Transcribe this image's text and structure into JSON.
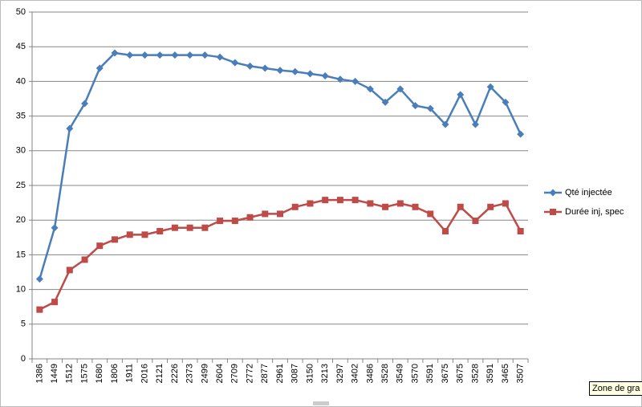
{
  "chart_data": {
    "type": "line",
    "categories": [
      "1386",
      "1449",
      "1512",
      "1575",
      "1680",
      "1806",
      "1911",
      "2016",
      "2121",
      "2226",
      "2373",
      "2499",
      "2604",
      "2709",
      "2772",
      "2877",
      "2961",
      "3087",
      "3150",
      "3213",
      "3297",
      "3402",
      "3486",
      "3528",
      "3549",
      "3570",
      "3591",
      "3675",
      "3675",
      "3528",
      "3591",
      "3465",
      "3507"
    ],
    "series": [
      {
        "name": "Qté injectée",
        "color": "#4a7ebb",
        "marker": "diamond",
        "values": [
          11.5,
          18.9,
          33.2,
          36.8,
          41.9,
          44.1,
          43.8,
          43.8,
          43.8,
          43.8,
          43.8,
          43.8,
          43.5,
          42.7,
          42.2,
          41.9,
          41.6,
          41.4,
          41.1,
          40.8,
          40.3,
          40.0,
          38.9,
          37.0,
          38.9,
          36.5,
          36.1,
          33.8,
          38.1,
          33.8,
          39.2,
          37.0,
          32.4
        ]
      },
      {
        "name": "Durée inj, spec",
        "color": "#be4b48",
        "marker": "square",
        "values": [
          7.1,
          8.2,
          12.8,
          14.3,
          16.3,
          17.2,
          17.9,
          17.9,
          18.4,
          18.9,
          18.9,
          18.9,
          19.9,
          19.9,
          20.4,
          20.9,
          20.9,
          21.9,
          22.4,
          22.9,
          22.9,
          22.9,
          22.4,
          21.9,
          22.4,
          21.9,
          20.9,
          18.4,
          21.9,
          19.9,
          21.9,
          22.4,
          18.4
        ]
      }
    ],
    "ylim": [
      0,
      50
    ],
    "yticks": [
      0,
      5,
      10,
      15,
      20,
      25,
      30,
      35,
      40,
      45,
      50
    ],
    "grid": true,
    "legend": "right",
    "tooltip": "Zone de gra"
  }
}
